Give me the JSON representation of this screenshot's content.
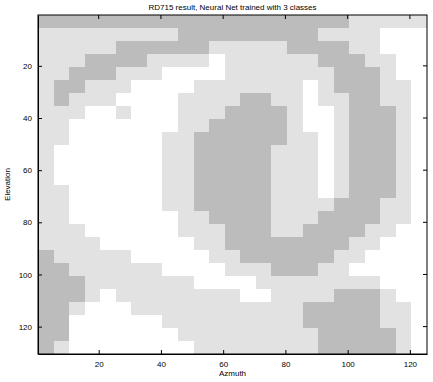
{
  "chart_data": {
    "type": "heatmap",
    "title": "RD715 result, Neural Net trained with 3 classes",
    "x_label": "Azmuth",
    "y_label": "Elevation",
    "xlim": [
      0.5,
      125.5
    ],
    "ylim": [
      0.5,
      130.5
    ],
    "xticks": [
      20,
      40,
      60,
      80,
      100,
      120
    ],
    "yticks": [
      20,
      40,
      60,
      80,
      100,
      120
    ],
    "colors": [
      "#ffffff",
      "#e2e2e2",
      "#bcbcbc"
    ],
    "x_edges": [
      0.5,
      5.5,
      10.5,
      15.5,
      20.5,
      25.5,
      30.5,
      35.5,
      40.5,
      45.5,
      50.5,
      55.5,
      60.5,
      65.5,
      70.5,
      75.5,
      80.5,
      85.5,
      90.5,
      95.5,
      100.5,
      105.5,
      110.5,
      115.5,
      120.5,
      125.5
    ],
    "y_edges": [
      0.5,
      5.5,
      10.5,
      15.5,
      20.5,
      25.5,
      30.5,
      35.5,
      40.5,
      45.5,
      50.5,
      55.5,
      60.5,
      65.5,
      70.5,
      75.5,
      80.5,
      85.5,
      90.5,
      95.5,
      100.5,
      105.5,
      110.5,
      115.5,
      120.5,
      125.5,
      130.5
    ],
    "cells": [
      [
        2,
        2,
        2,
        2,
        2,
        2,
        2,
        2,
        2,
        2,
        2,
        2,
        2,
        2,
        2,
        2,
        2,
        2,
        2,
        2,
        1,
        1,
        1,
        1,
        1
      ],
      [
        1,
        1,
        1,
        1,
        1,
        1,
        1,
        1,
        1,
        2,
        2,
        2,
        2,
        2,
        2,
        2,
        2,
        2,
        1,
        1,
        1,
        1,
        0,
        0,
        0
      ],
      [
        1,
        1,
        1,
        1,
        1,
        2,
        2,
        2,
        2,
        2,
        2,
        1,
        1,
        1,
        1,
        1,
        2,
        2,
        2,
        2,
        1,
        1,
        0,
        0,
        0
      ],
      [
        1,
        1,
        1,
        2,
        2,
        2,
        2,
        1,
        1,
        1,
        1,
        0,
        1,
        1,
        1,
        1,
        1,
        1,
        2,
        2,
        2,
        1,
        1,
        0,
        0
      ],
      [
        1,
        1,
        2,
        2,
        2,
        1,
        1,
        1,
        0,
        0,
        0,
        0,
        1,
        1,
        1,
        1,
        1,
        1,
        1,
        2,
        2,
        2,
        1,
        0,
        0
      ],
      [
        1,
        2,
        2,
        1,
        1,
        1,
        0,
        0,
        0,
        0,
        1,
        1,
        1,
        1,
        1,
        1,
        1,
        0,
        1,
        2,
        2,
        2,
        1,
        1,
        0
      ],
      [
        1,
        2,
        1,
        1,
        1,
        0,
        0,
        0,
        0,
        1,
        1,
        1,
        1,
        2,
        2,
        1,
        1,
        0,
        1,
        1,
        2,
        2,
        1,
        1,
        0
      ],
      [
        1,
        1,
        1,
        0,
        0,
        1,
        0,
        0,
        0,
        1,
        1,
        1,
        2,
        2,
        2,
        2,
        1,
        0,
        0,
        1,
        2,
        2,
        2,
        1,
        0
      ],
      [
        1,
        1,
        0,
        0,
        0,
        0,
        0,
        0,
        0,
        1,
        1,
        2,
        2,
        2,
        2,
        2,
        1,
        0,
        0,
        1,
        2,
        2,
        2,
        1,
        0
      ],
      [
        1,
        1,
        0,
        0,
        0,
        0,
        0,
        0,
        1,
        1,
        2,
        2,
        2,
        2,
        2,
        2,
        1,
        1,
        0,
        1,
        2,
        2,
        2,
        1,
        0
      ],
      [
        1,
        0,
        0,
        0,
        0,
        0,
        0,
        0,
        1,
        1,
        2,
        2,
        2,
        2,
        2,
        1,
        1,
        1,
        0,
        1,
        2,
        2,
        2,
        1,
        0
      ],
      [
        1,
        0,
        0,
        0,
        0,
        0,
        0,
        0,
        1,
        1,
        2,
        2,
        2,
        2,
        2,
        1,
        1,
        1,
        0,
        1,
        2,
        2,
        2,
        1,
        0
      ],
      [
        1,
        0,
        0,
        0,
        0,
        0,
        0,
        0,
        1,
        1,
        2,
        2,
        2,
        2,
        2,
        1,
        1,
        1,
        0,
        1,
        2,
        2,
        2,
        1,
        0
      ],
      [
        1,
        1,
        0,
        0,
        0,
        0,
        0,
        0,
        1,
        1,
        2,
        2,
        2,
        2,
        2,
        1,
        1,
        1,
        0,
        1,
        2,
        2,
        2,
        1,
        0
      ],
      [
        1,
        1,
        0,
        0,
        0,
        0,
        0,
        0,
        1,
        1,
        2,
        2,
        2,
        2,
        2,
        1,
        1,
        1,
        1,
        2,
        2,
        2,
        1,
        1,
        0
      ],
      [
        1,
        1,
        0,
        0,
        0,
        0,
        0,
        0,
        0,
        1,
        1,
        2,
        2,
        2,
        2,
        1,
        1,
        1,
        2,
        2,
        2,
        2,
        1,
        1,
        0
      ],
      [
        1,
        1,
        1,
        0,
        0,
        0,
        0,
        0,
        0,
        1,
        1,
        1,
        2,
        2,
        2,
        1,
        1,
        2,
        2,
        2,
        2,
        1,
        1,
        0,
        0
      ],
      [
        1,
        1,
        1,
        1,
        0,
        0,
        0,
        0,
        0,
        0,
        1,
        1,
        2,
        2,
        2,
        2,
        2,
        2,
        2,
        2,
        1,
        1,
        0,
        0,
        0
      ],
      [
        2,
        1,
        1,
        1,
        1,
        1,
        0,
        0,
        0,
        0,
        0,
        1,
        1,
        2,
        2,
        2,
        2,
        2,
        2,
        1,
        1,
        0,
        0,
        0,
        0
      ],
      [
        2,
        2,
        1,
        1,
        1,
        1,
        1,
        1,
        0,
        0,
        0,
        0,
        1,
        1,
        1,
        2,
        2,
        2,
        1,
        1,
        0,
        0,
        0,
        0,
        0
      ],
      [
        2,
        2,
        2,
        1,
        1,
        1,
        1,
        1,
        1,
        1,
        0,
        0,
        0,
        0,
        1,
        1,
        1,
        1,
        1,
        1,
        1,
        1,
        0,
        0,
        0
      ],
      [
        2,
        2,
        2,
        1,
        0,
        1,
        1,
        1,
        1,
        1,
        1,
        1,
        1,
        0,
        0,
        1,
        1,
        1,
        1,
        2,
        2,
        2,
        1,
        0,
        0
      ],
      [
        2,
        2,
        1,
        0,
        0,
        0,
        1,
        1,
        1,
        1,
        1,
        1,
        1,
        1,
        1,
        1,
        1,
        2,
        2,
        2,
        2,
        2,
        1,
        1,
        0
      ],
      [
        2,
        2,
        0,
        0,
        0,
        0,
        0,
        0,
        1,
        1,
        1,
        1,
        1,
        1,
        1,
        1,
        1,
        2,
        2,
        2,
        2,
        2,
        1,
        1,
        0
      ],
      [
        2,
        2,
        0,
        0,
        0,
        0,
        0,
        0,
        0,
        1,
        1,
        1,
        1,
        1,
        1,
        1,
        1,
        1,
        2,
        2,
        2,
        2,
        2,
        1,
        0
      ],
      [
        2,
        1,
        0,
        0,
        0,
        0,
        0,
        0,
        0,
        0,
        1,
        1,
        1,
        1,
        1,
        1,
        1,
        1,
        2,
        2,
        2,
        2,
        2,
        1,
        0
      ]
    ]
  }
}
